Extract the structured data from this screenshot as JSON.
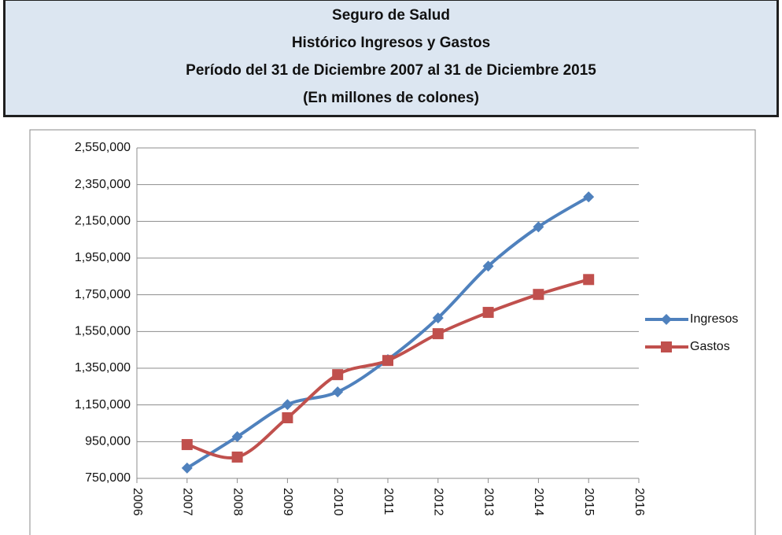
{
  "header": {
    "lines": [
      "Seguro de Salud",
      "Histórico Ingresos y Gastos",
      "Período del 31 de Diciembre 2007 al 31 de Diciembre 2015",
      "(En millones de colones)"
    ]
  },
  "chart_data": {
    "type": "line",
    "x": [
      2007,
      2008,
      2009,
      2010,
      2011,
      2012,
      2013,
      2014,
      2015
    ],
    "series": [
      {
        "name": "Ingresos",
        "color": "#4f81bd",
        "marker": "diamond",
        "values": [
          806000,
          977000,
          1152000,
          1221000,
          1397000,
          1624000,
          1906000,
          2120000,
          2283000
        ]
      },
      {
        "name": "Gastos",
        "color": "#c0504d",
        "marker": "square",
        "values": [
          934000,
          866000,
          1080000,
          1315000,
          1392000,
          1538000,
          1654000,
          1752000,
          1833000
        ]
      }
    ],
    "xlim": [
      2006,
      2016
    ],
    "xticks": [
      2006,
      2007,
      2008,
      2009,
      2010,
      2011,
      2012,
      2013,
      2014,
      2015,
      2016
    ],
    "ylim": [
      750000,
      2550000
    ],
    "yticks": [
      {
        "value": 750000,
        "label": "750,000"
      },
      {
        "value": 950000,
        "label": "950,000"
      },
      {
        "value": 1150000,
        "label": "1,150,000"
      },
      {
        "value": 1350000,
        "label": "1,350,000"
      },
      {
        "value": 1550000,
        "label": "1,550,000"
      },
      {
        "value": 1750000,
        "label": "1,750,000"
      },
      {
        "value": 1950000,
        "label": "1,950,000"
      },
      {
        "value": 2150000,
        "label": "2,150,000"
      },
      {
        "value": 2350000,
        "label": "2,350,000"
      },
      {
        "value": 2550000,
        "label": "2,550,000"
      }
    ],
    "grid": true,
    "smooth": true,
    "legend": "right"
  }
}
